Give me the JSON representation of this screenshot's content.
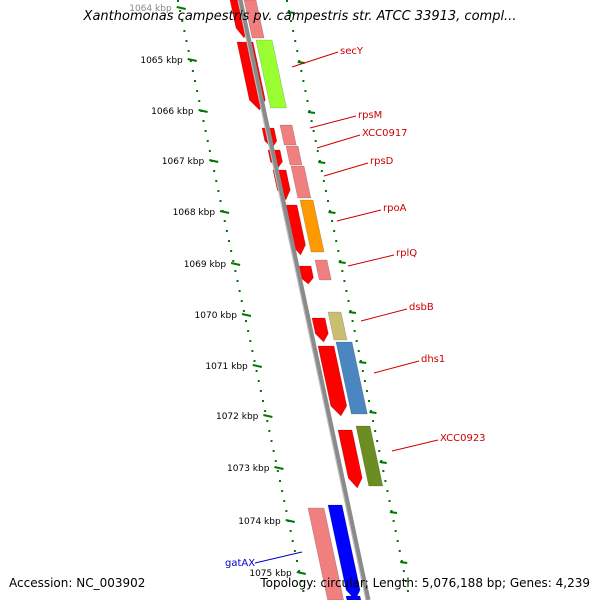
{
  "title": "Xanthomonas campestris pv. campestris str. ATCC 33913, compl...",
  "footer": {
    "accession": "Accession: NC_003902",
    "summary": "Topology: circular; Length: 5,076,188 bp; Genes: 4,239"
  },
  "ticks": [
    "1064 kbp",
    "1065 kbp",
    "1066 kbp",
    "1067 kbp",
    "1068 kbp",
    "1069 kbp",
    "1070 kbp",
    "1071 kbp",
    "1072 kbp",
    "1073 kbp",
    "1074 kbp",
    "1075 kbp"
  ],
  "gene_labels": [
    {
      "text": "secY",
      "color": "#cc0000"
    },
    {
      "text": "rpsM",
      "color": "#cc0000"
    },
    {
      "text": "XCC0917",
      "color": "#cc0000"
    },
    {
      "text": "rpsD",
      "color": "#cc0000"
    },
    {
      "text": "rpoA",
      "color": "#cc0000"
    },
    {
      "text": "rplQ",
      "color": "#cc0000"
    },
    {
      "text": "dsbB",
      "color": "#cc0000"
    },
    {
      "text": "dhs1",
      "color": "#cc0000"
    },
    {
      "text": "XCC0923",
      "color": "#cc0000"
    },
    {
      "text": "gatAX",
      "color": "#0000cc"
    }
  ],
  "colors": {
    "tick": "#007700",
    "backbone": "#888888",
    "feature_red": "#ff0000",
    "feature_pink": "#f08080",
    "feature_blue": "#0000ff"
  }
}
